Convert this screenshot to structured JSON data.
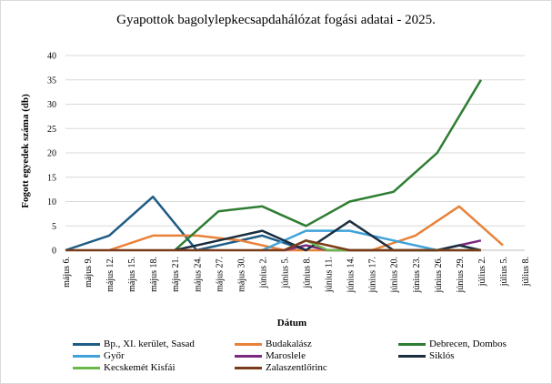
{
  "chart_data": {
    "type": "line",
    "title": "Gyapottok bagolylepkecsapdahálózat fogási adatai - 2025.",
    "xlabel": "Dátum",
    "ylabel": "Fogott egyedek száma (db)",
    "ylim": [
      0,
      40
    ],
    "yticks": [
      "0",
      "5",
      "10",
      "15",
      "20",
      "25",
      "30",
      "35",
      "40"
    ],
    "categories": [
      "május 6.",
      "május 9.",
      "május 12.",
      "május 15.",
      "május 18.",
      "május 21.",
      "május 24.",
      "május 27.",
      "május 30.",
      "június 2.",
      "június 5.",
      "június 8.",
      "június 11.",
      "június 14.",
      "június 17.",
      "június 20.",
      "június 23.",
      "június 26.",
      "június 29.",
      "július 2.",
      "július 5.",
      "július 8."
    ],
    "grid": true,
    "legend_position": "bottom",
    "series": [
      {
        "name": "Bp., XI. kerület, Sasad",
        "color": "#1f5c85",
        "points": [
          [
            0,
            0
          ],
          [
            2,
            3
          ],
          [
            4,
            11
          ],
          [
            6,
            0
          ],
          [
            9,
            3
          ],
          [
            11,
            0
          ]
        ]
      },
      {
        "name": "Budakalász",
        "color": "#e8823a",
        "points": [
          [
            2,
            0
          ],
          [
            4,
            3
          ],
          [
            6,
            3
          ],
          [
            8,
            2
          ],
          [
            9,
            1
          ],
          [
            10,
            0
          ],
          [
            14,
            0
          ],
          [
            16,
            3
          ],
          [
            18,
            9
          ],
          [
            20,
            1
          ]
        ]
      },
      {
        "name": "Debrecen, Dombos",
        "color": "#2e7d32",
        "points": [
          [
            5,
            0
          ],
          [
            7,
            8
          ],
          [
            9,
            9
          ],
          [
            11,
            5
          ],
          [
            13,
            10
          ],
          [
            15,
            12
          ],
          [
            17,
            20
          ],
          [
            19,
            35
          ]
        ]
      },
      {
        "name": "Győr",
        "color": "#3fa3d9",
        "points": [
          [
            9,
            0
          ],
          [
            11,
            4
          ],
          [
            13,
            4
          ],
          [
            15,
            2
          ],
          [
            17,
            0
          ]
        ]
      },
      {
        "name": "Maroslele",
        "color": "#7b2a7f",
        "points": [
          [
            10,
            0
          ],
          [
            11,
            1
          ],
          [
            12,
            0
          ],
          [
            17,
            0
          ],
          [
            18,
            1
          ],
          [
            19,
            2
          ]
        ]
      },
      {
        "name": "Siklós",
        "color": "#1a2e40",
        "points": [
          [
            5,
            0
          ],
          [
            7,
            2
          ],
          [
            9,
            4
          ],
          [
            11,
            0
          ],
          [
            13,
            6
          ],
          [
            15,
            0
          ],
          [
            17,
            0
          ],
          [
            18,
            1
          ],
          [
            19,
            0
          ]
        ]
      },
      {
        "name": "Kecskemét Kisfái",
        "color": "#6ab84a",
        "points": [
          [
            10,
            0
          ],
          [
            11,
            2
          ],
          [
            12,
            0
          ],
          [
            18,
            0
          ],
          [
            19,
            0
          ]
        ]
      },
      {
        "name": "Zalaszentlőrinc",
        "color": "#7a3b1a",
        "points": [
          [
            0,
            0
          ],
          [
            10,
            0
          ],
          [
            11,
            2
          ],
          [
            12,
            1
          ],
          [
            13,
            0
          ],
          [
            19,
            0
          ]
        ]
      }
    ]
  }
}
